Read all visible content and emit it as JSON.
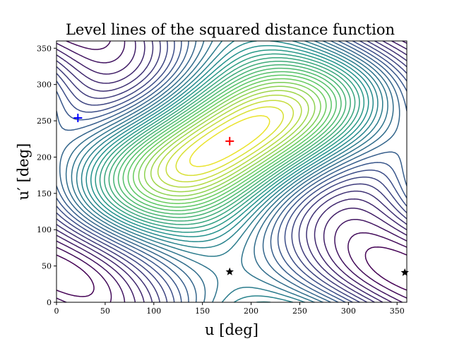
{
  "chart_data": {
    "type": "contour",
    "title": "Level lines of the squared distance function",
    "xlabel": "u [deg]",
    "ylabel": "u′ [deg]",
    "xlim": [
      0,
      360
    ],
    "ylim": [
      0,
      360
    ],
    "xticks": [
      0,
      50,
      100,
      150,
      200,
      250,
      300,
      350
    ],
    "yticks": [
      0,
      50,
      100,
      150,
      200,
      250,
      300,
      350
    ],
    "grid": false,
    "colormap": [
      "#440154",
      "#3b528b",
      "#21918c",
      "#5ec962",
      "#fde725"
    ],
    "contour_center": {
      "x": 178,
      "y": 222
    },
    "markers": [
      {
        "kind": "plus",
        "color": "#0000ff",
        "x": 22,
        "y": 254
      },
      {
        "kind": "plus",
        "color": "#ff0000",
        "x": 178,
        "y": 222
      },
      {
        "kind": "star",
        "color": "#000000",
        "x": 178,
        "y": 42
      },
      {
        "kind": "star",
        "color": "#000000",
        "x": 358,
        "y": 41
      }
    ]
  }
}
